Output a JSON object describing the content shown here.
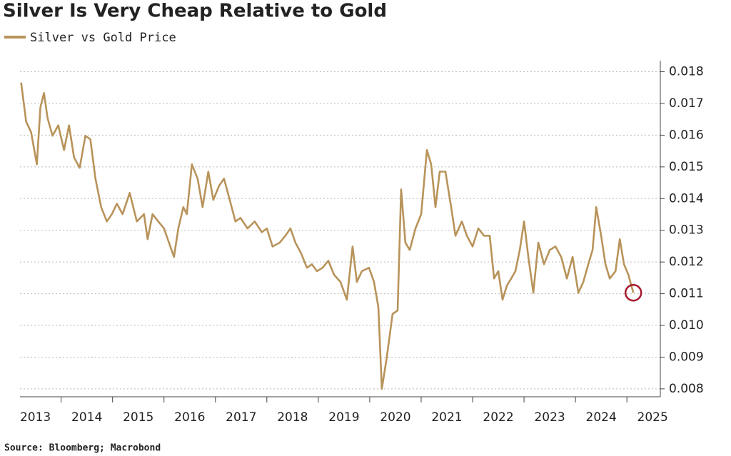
{
  "chart_data": {
    "type": "line",
    "title": "Silver Is Very Cheap Relative to Gold",
    "source": "Source: Bloomberg; Macrobond",
    "series": [
      {
        "name": "Silver vs Gold Price",
        "color": "#b8935a",
        "x": [
          2013.222,
          2013.319,
          2013.417,
          2013.528,
          2013.597,
          2013.667,
          2013.736,
          2013.833,
          2013.944,
          2014.056,
          2014.153,
          2014.25,
          2014.361,
          2014.472,
          2014.569,
          2014.667,
          2014.778,
          2014.889,
          2014.986,
          2015.083,
          2015.194,
          2015.333,
          2015.472,
          2015.611,
          2015.681,
          2015.778,
          2015.889,
          2016.0,
          2016.097,
          2016.194,
          2016.278,
          2016.375,
          2016.444,
          2016.542,
          2016.653,
          2016.75,
          2016.861,
          2016.958,
          2017.069,
          2017.167,
          2017.278,
          2017.389,
          2017.486,
          2017.625,
          2017.764,
          2017.903,
          2018.0,
          2018.111,
          2018.25,
          2018.361,
          2018.458,
          2018.556,
          2018.667,
          2018.778,
          2018.875,
          2018.972,
          2019.083,
          2019.194,
          2019.306,
          2019.431,
          2019.556,
          2019.667,
          2019.75,
          2019.847,
          2019.986,
          2020.083,
          2020.167,
          2020.236,
          2020.333,
          2020.444,
          2020.542,
          2020.611,
          2020.694,
          2020.778,
          2020.889,
          2021.0,
          2021.111,
          2021.194,
          2021.278,
          2021.361,
          2021.472,
          2021.583,
          2021.667,
          2021.792,
          2021.889,
          2022.0,
          2022.111,
          2022.222,
          2022.333,
          2022.417,
          2022.5,
          2022.583,
          2022.667,
          2022.75,
          2022.833,
          2022.917,
          2023.0,
          2023.083,
          2023.181,
          2023.278,
          2023.389,
          2023.5,
          2023.611,
          2023.722,
          2023.833,
          2023.944,
          2024.056,
          2024.153,
          2024.25,
          2024.333,
          2024.403,
          2024.5,
          2024.583,
          2024.667,
          2024.778,
          2024.861,
          2024.944,
          2025.028,
          2025.125
        ],
        "values": [
          0.01766,
          0.01643,
          0.01609,
          0.01508,
          0.01688,
          0.01733,
          0.01654,
          0.01598,
          0.01631,
          0.01553,
          0.01631,
          0.0153,
          0.01497,
          0.01598,
          0.01587,
          0.01463,
          0.01373,
          0.01328,
          0.01351,
          0.01384,
          0.01351,
          0.01418,
          0.01328,
          0.01351,
          0.01272,
          0.01351,
          0.01328,
          0.01306,
          0.01261,
          0.01216,
          0.01306,
          0.01373,
          0.01351,
          0.01508,
          0.01463,
          0.01373,
          0.01485,
          0.01396,
          0.0144,
          0.01463,
          0.01396,
          0.01328,
          0.01339,
          0.01306,
          0.01328,
          0.01294,
          0.01306,
          0.01249,
          0.01261,
          0.01283,
          0.01306,
          0.01261,
          0.01227,
          0.01182,
          0.01193,
          0.01171,
          0.01182,
          0.01204,
          0.0116,
          0.01137,
          0.01081,
          0.01249,
          0.01137,
          0.01171,
          0.01182,
          0.01137,
          0.01058,
          0.008,
          0.00901,
          0.01036,
          0.01047,
          0.01429,
          0.01261,
          0.01238,
          0.01306,
          0.01351,
          0.01553,
          0.01508,
          0.01373,
          0.01485,
          0.01485,
          0.01373,
          0.01283,
          0.01328,
          0.01283,
          0.01249,
          0.01306,
          0.01283,
          0.01283,
          0.01148,
          0.01171,
          0.01081,
          0.01126,
          0.01148,
          0.01171,
          0.01238,
          0.01328,
          0.01216,
          0.01103,
          0.01261,
          0.01193,
          0.01238,
          0.01249,
          0.01216,
          0.01148,
          0.01216,
          0.01103,
          0.01137,
          0.01193,
          0.01238,
          0.01373,
          0.01283,
          0.01193,
          0.01148,
          0.01171,
          0.01272,
          0.01193,
          0.0116,
          0.01103
        ]
      }
    ],
    "highlight_color": "#a6192e",
    "xlim": [
      2013.2,
      2025.65
    ],
    "xticks": [
      2013,
      2014,
      2015,
      2016,
      2017,
      2018,
      2019,
      2020,
      2021,
      2022,
      2023,
      2024,
      2025
    ],
    "ylim": [
      0.00775,
      0.01835
    ],
    "yticks": [
      0.008,
      0.009,
      {
        "value": 0.01,
        "label": "0.010"
      },
      0.011,
      0.012,
      0.013,
      0.014,
      0.015,
      0.016,
      0.017,
      0.018
    ],
    "grid": true
  }
}
